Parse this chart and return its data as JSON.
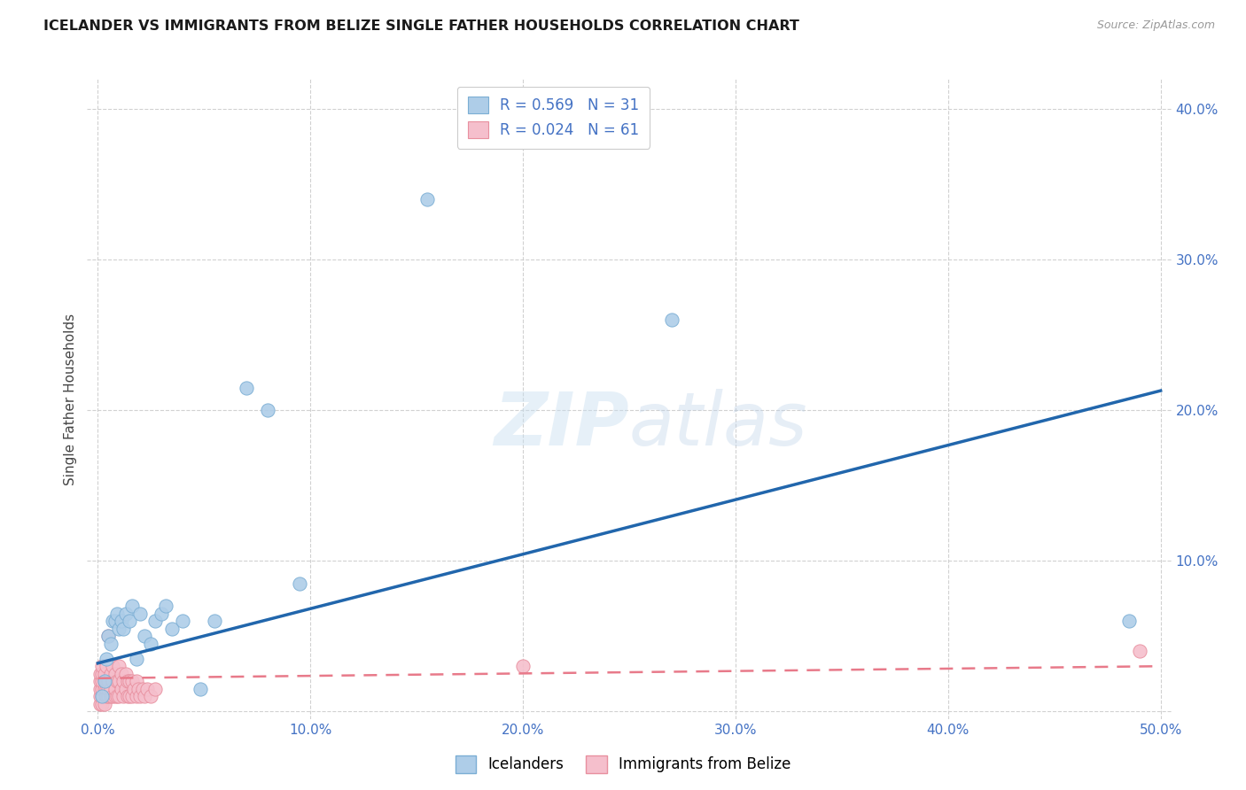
{
  "title": "ICELANDER VS IMMIGRANTS FROM BELIZE SINGLE FATHER HOUSEHOLDS CORRELATION CHART",
  "source": "Source: ZipAtlas.com",
  "ylabel": "Single Father Households",
  "xlabel": "",
  "xlim": [
    -0.005,
    0.505
  ],
  "ylim": [
    -0.005,
    0.42
  ],
  "x_ticks": [
    0.0,
    0.1,
    0.2,
    0.3,
    0.4,
    0.5
  ],
  "x_tick_labels": [
    "0.0%",
    "10.0%",
    "20.0%",
    "30.0%",
    "40.0%",
    "50.0%"
  ],
  "y_ticks": [
    0.0,
    0.1,
    0.2,
    0.3,
    0.4
  ],
  "y_tick_labels": [
    "",
    "10.0%",
    "20.0%",
    "30.0%",
    "40.0%"
  ],
  "icelanders_R": "0.569",
  "icelanders_N": "31",
  "belize_R": "0.024",
  "belize_N": "61",
  "blue_color": "#aecde8",
  "pink_color": "#f5bfcc",
  "blue_edge_color": "#7baed4",
  "pink_edge_color": "#e8909f",
  "blue_line_color": "#2166ac",
  "pink_line_color": "#e87a8a",
  "legend_text_color": "#4472c4",
  "watermark": "ZIPatlas",
  "blue_line_x0": 0.0,
  "blue_line_y0": 0.032,
  "blue_line_x1": 0.5,
  "blue_line_y1": 0.213,
  "pink_line_x0": 0.0,
  "pink_line_y0": 0.022,
  "pink_line_x1": 0.5,
  "pink_line_y1": 0.03,
  "icelanders_x": [
    0.002,
    0.003,
    0.004,
    0.005,
    0.006,
    0.007,
    0.008,
    0.009,
    0.01,
    0.011,
    0.012,
    0.013,
    0.015,
    0.016,
    0.018,
    0.02,
    0.022,
    0.025,
    0.027,
    0.03,
    0.032,
    0.035,
    0.04,
    0.048,
    0.055,
    0.07,
    0.08,
    0.095,
    0.155,
    0.27,
    0.485
  ],
  "icelanders_y": [
    0.01,
    0.02,
    0.035,
    0.05,
    0.045,
    0.06,
    0.06,
    0.065,
    0.055,
    0.06,
    0.055,
    0.065,
    0.06,
    0.07,
    0.035,
    0.065,
    0.05,
    0.045,
    0.06,
    0.065,
    0.07,
    0.055,
    0.06,
    0.015,
    0.06,
    0.215,
    0.2,
    0.085,
    0.34,
    0.26,
    0.06
  ],
  "belize_x": [
    0.001,
    0.001,
    0.001,
    0.001,
    0.001,
    0.002,
    0.002,
    0.002,
    0.002,
    0.002,
    0.002,
    0.003,
    0.003,
    0.003,
    0.003,
    0.004,
    0.004,
    0.004,
    0.004,
    0.005,
    0.005,
    0.005,
    0.005,
    0.006,
    0.006,
    0.006,
    0.007,
    0.007,
    0.007,
    0.008,
    0.008,
    0.008,
    0.009,
    0.009,
    0.01,
    0.01,
    0.01,
    0.011,
    0.011,
    0.012,
    0.012,
    0.013,
    0.013,
    0.014,
    0.014,
    0.015,
    0.015,
    0.016,
    0.016,
    0.017,
    0.018,
    0.018,
    0.019,
    0.02,
    0.021,
    0.022,
    0.023,
    0.025,
    0.027,
    0.2,
    0.49
  ],
  "belize_y": [
    0.005,
    0.01,
    0.015,
    0.02,
    0.025,
    0.005,
    0.01,
    0.015,
    0.02,
    0.025,
    0.03,
    0.005,
    0.015,
    0.02,
    0.025,
    0.01,
    0.015,
    0.02,
    0.03,
    0.01,
    0.015,
    0.02,
    0.05,
    0.01,
    0.015,
    0.025,
    0.01,
    0.02,
    0.03,
    0.01,
    0.015,
    0.025,
    0.01,
    0.02,
    0.01,
    0.02,
    0.03,
    0.015,
    0.025,
    0.01,
    0.02,
    0.015,
    0.025,
    0.01,
    0.02,
    0.01,
    0.02,
    0.01,
    0.02,
    0.015,
    0.01,
    0.02,
    0.015,
    0.01,
    0.015,
    0.01,
    0.015,
    0.01,
    0.015,
    0.03,
    0.04
  ]
}
